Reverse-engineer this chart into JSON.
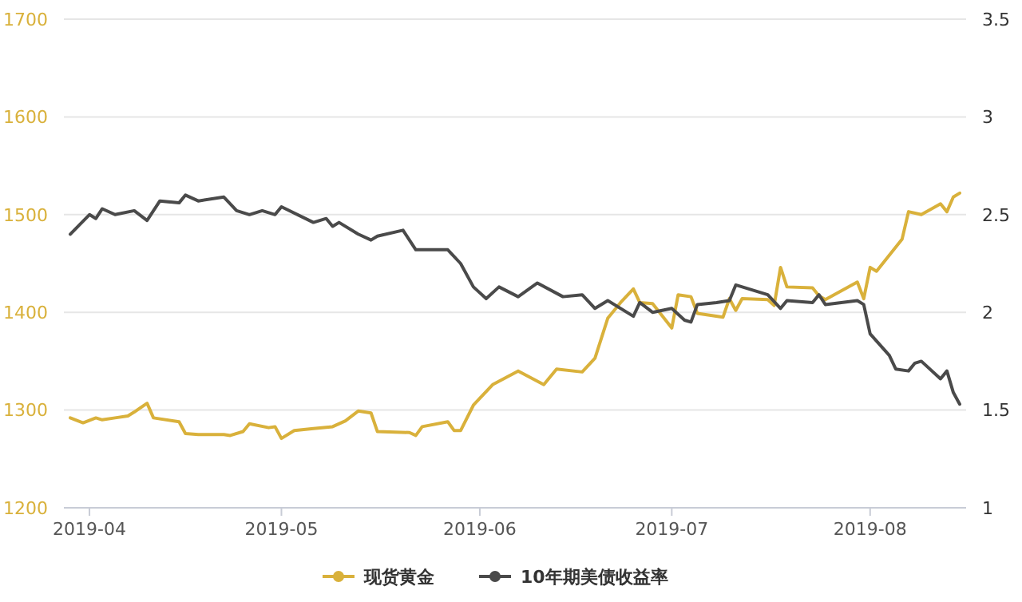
{
  "chart_data": {
    "type": "line",
    "xlim": [
      "2019-03-28",
      "2019-08-16"
    ],
    "xticks": [
      {
        "value": "2019-04-01",
        "label": "2019-04"
      },
      {
        "value": "2019-05-01",
        "label": "2019-05"
      },
      {
        "value": "2019-06-01",
        "label": "2019-06"
      },
      {
        "value": "2019-07-01",
        "label": "2019-07"
      },
      {
        "value": "2019-08-01",
        "label": "2019-08"
      }
    ],
    "ylim": [
      1200,
      1700
    ],
    "yticks": [
      1200,
      1300,
      1400,
      1500,
      1600,
      1700
    ],
    "y2lim": [
      1,
      3.5
    ],
    "y2ticks": [
      1,
      1.5,
      2,
      2.5,
      3,
      3.5
    ],
    "grid": "y",
    "legend": "bottom",
    "marker": "none",
    "line_style": "solid",
    "series": [
      {
        "name": "现货黄金",
        "color": "#d9b13b",
        "x": [
          "2019-03-29",
          "2019-03-31",
          "2019-04-02",
          "2019-04-03",
          "2019-04-05",
          "2019-04-07",
          "2019-04-08",
          "2019-04-10",
          "2019-04-11",
          "2019-04-15",
          "2019-04-16",
          "2019-04-18",
          "2019-04-22",
          "2019-04-23",
          "2019-04-25",
          "2019-04-26",
          "2019-04-29",
          "2019-04-30",
          "2019-05-01",
          "2019-05-03",
          "2019-05-06",
          "2019-05-09",
          "2019-05-11",
          "2019-05-13",
          "2019-05-15",
          "2019-05-16",
          "2019-05-21",
          "2019-05-22",
          "2019-05-23",
          "2019-05-27",
          "2019-05-28",
          "2019-05-29",
          "2019-05-31",
          "2019-06-03",
          "2019-06-07",
          "2019-06-11",
          "2019-06-13",
          "2019-06-17",
          "2019-06-19",
          "2019-06-21",
          "2019-06-23",
          "2019-06-25",
          "2019-06-26",
          "2019-06-28",
          "2019-07-01",
          "2019-07-02",
          "2019-07-04",
          "2019-07-05",
          "2019-07-09",
          "2019-07-10",
          "2019-07-11",
          "2019-07-12",
          "2019-07-16",
          "2019-07-17",
          "2019-07-18",
          "2019-07-19",
          "2019-07-23",
          "2019-07-24",
          "2019-07-25",
          "2019-07-30",
          "2019-07-31",
          "2019-08-01",
          "2019-08-02",
          "2019-08-06",
          "2019-08-07",
          "2019-08-09",
          "2019-08-12",
          "2019-08-13",
          "2019-08-14",
          "2019-08-15"
        ],
        "values": [
          1292,
          1287,
          1292,
          1290,
          1292,
          1294,
          1298,
          1307,
          1292,
          1288,
          1276,
          1275,
          1275,
          1274,
          1278,
          1286,
          1282,
          1283,
          1271,
          1279,
          1281,
          1283,
          1289,
          1299,
          1297,
          1278,
          1277,
          1274,
          1283,
          1288,
          1279,
          1279,
          1305,
          1326,
          1340,
          1326,
          1342,
          1339,
          1353,
          1394,
          1410,
          1424,
          1410,
          1409,
          1384,
          1418,
          1416,
          1399,
          1395,
          1414,
          1402,
          1414,
          1413,
          1407,
          1446,
          1426,
          1425,
          1417,
          1413,
          1431,
          1414,
          1446,
          1442,
          1475,
          1503,
          1500,
          1511,
          1503,
          1518,
          1522
        ]
      },
      {
        "name": "10年期美债收益率",
        "color": "#4a4a4a",
        "axis": "y2",
        "x": [
          "2019-03-29",
          "2019-04-01",
          "2019-04-02",
          "2019-04-03",
          "2019-04-05",
          "2019-04-08",
          "2019-04-10",
          "2019-04-12",
          "2019-04-15",
          "2019-04-16",
          "2019-04-18",
          "2019-04-22",
          "2019-04-24",
          "2019-04-26",
          "2019-04-28",
          "2019-04-30",
          "2019-05-01",
          "2019-05-06",
          "2019-05-08",
          "2019-05-09",
          "2019-05-10",
          "2019-05-13",
          "2019-05-15",
          "2019-05-16",
          "2019-05-20",
          "2019-05-22",
          "2019-05-27",
          "2019-05-29",
          "2019-05-31",
          "2019-06-02",
          "2019-06-04",
          "2019-06-07",
          "2019-06-10",
          "2019-06-14",
          "2019-06-17",
          "2019-06-19",
          "2019-06-21",
          "2019-06-25",
          "2019-06-26",
          "2019-06-28",
          "2019-07-01",
          "2019-07-03",
          "2019-07-04",
          "2019-07-05",
          "2019-07-08",
          "2019-07-10",
          "2019-07-11",
          "2019-07-16",
          "2019-07-18",
          "2019-07-19",
          "2019-07-23",
          "2019-07-24",
          "2019-07-25",
          "2019-07-30",
          "2019-07-31",
          "2019-08-01",
          "2019-08-04",
          "2019-08-05",
          "2019-08-07",
          "2019-08-08",
          "2019-08-09",
          "2019-08-12",
          "2019-08-13",
          "2019-08-14",
          "2019-08-15"
        ],
        "values": [
          2.4,
          2.5,
          2.48,
          2.53,
          2.5,
          2.52,
          2.47,
          2.57,
          2.56,
          2.6,
          2.57,
          2.59,
          2.52,
          2.5,
          2.52,
          2.5,
          2.54,
          2.46,
          2.48,
          2.44,
          2.46,
          2.4,
          2.37,
          2.39,
          2.42,
          2.32,
          2.32,
          2.25,
          2.13,
          2.07,
          2.13,
          2.08,
          2.15,
          2.08,
          2.09,
          2.02,
          2.06,
          1.98,
          2.05,
          2.0,
          2.02,
          1.96,
          1.95,
          2.04,
          2.05,
          2.06,
          2.14,
          2.09,
          2.02,
          2.06,
          2.05,
          2.09,
          2.04,
          2.06,
          2.04,
          1.89,
          1.78,
          1.71,
          1.7,
          1.74,
          1.75,
          1.66,
          1.7,
          1.59,
          1.53
        ]
      }
    ]
  }
}
